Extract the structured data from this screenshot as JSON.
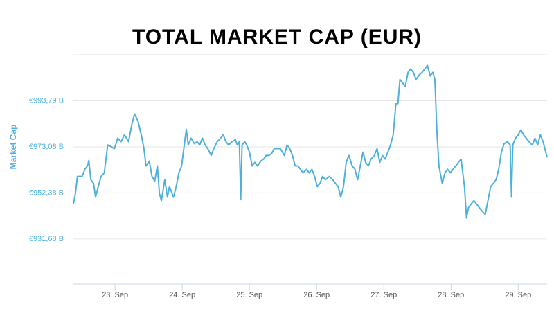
{
  "chart_data": {
    "type": "line",
    "title": "TOTAL MARKET CAP (EUR)",
    "y_label": "Market Cap",
    "x": [
      22.38,
      22.41,
      22.44,
      22.51,
      22.55,
      22.59,
      22.61,
      22.64,
      22.68,
      22.71,
      22.75,
      22.79,
      22.84,
      22.89,
      22.94,
      22.99,
      23.04,
      23.09,
      23.14,
      23.2,
      23.25,
      23.29,
      23.34,
      23.39,
      23.43,
      23.46,
      23.51,
      23.55,
      23.59,
      23.63,
      23.66,
      23.69,
      23.74,
      23.78,
      23.81,
      23.87,
      23.91,
      23.95,
      23.99,
      24.03,
      24.06,
      24.09,
      24.13,
      24.18,
      24.22,
      24.26,
      24.3,
      24.34,
      24.38,
      24.43,
      24.47,
      24.52,
      24.57,
      24.61,
      24.65,
      24.69,
      24.74,
      24.79,
      24.82,
      24.85,
      24.87,
      24.89,
      24.93,
      24.96,
      25.0,
      25.04,
      25.08,
      25.12,
      25.17,
      25.21,
      25.25,
      25.29,
      25.33,
      25.37,
      25.41,
      25.46,
      25.52,
      25.56,
      25.6,
      25.64,
      25.68,
      25.72,
      25.76,
      25.8,
      25.85,
      25.89,
      25.93,
      25.97,
      26.01,
      26.05,
      26.09,
      26.13,
      26.19,
      26.24,
      26.28,
      26.32,
      26.36,
      26.4,
      26.44,
      26.48,
      26.53,
      26.57,
      26.61,
      26.65,
      26.69,
      26.73,
      26.77,
      26.81,
      26.86,
      26.9,
      26.94,
      26.98,
      27.02,
      27.06,
      27.1,
      27.14,
      27.18,
      27.21,
      27.24,
      27.28,
      27.32,
      27.36,
      27.4,
      27.44,
      27.48,
      27.53,
      27.57,
      27.61,
      27.65,
      27.69,
      27.73,
      27.76,
      27.79,
      27.82,
      27.87,
      27.91,
      27.95,
      27.99,
      28.03,
      28.07,
      28.11,
      28.15,
      28.2,
      28.23,
      28.26,
      28.3,
      28.34,
      28.38,
      28.42,
      28.46,
      28.51,
      28.55,
      28.59,
      28.63,
      28.67,
      28.71,
      28.75,
      28.79,
      28.84,
      28.88,
      28.9,
      28.92,
      28.96,
      29.0,
      29.04,
      29.08,
      29.12,
      29.16,
      29.21,
      29.25,
      29.29,
      29.33,
      29.37,
      29.41,
      29.43
    ],
    "series": [
      {
        "name": "Market Cap",
        "color": "#4fb0dd",
        "values": [
          947.4,
          952.1,
          959.8,
          959.8,
          963.0,
          964.5,
          967.0,
          958.3,
          956.7,
          950.5,
          955.2,
          959.8,
          961.4,
          973.9,
          973.2,
          972.3,
          977.0,
          975.4,
          978.5,
          975.4,
          983.2,
          987.9,
          984.8,
          978.5,
          972.3,
          964.5,
          966.7,
          959.8,
          957.7,
          964.5,
          952.1,
          948.9,
          958.3,
          950.5,
          955.2,
          950.5,
          955.2,
          961.4,
          964.5,
          973.9,
          981.0,
          973.9,
          977.0,
          974.5,
          975.4,
          973.9,
          977.0,
          973.9,
          972.3,
          969.2,
          972.3,
          975.4,
          977.0,
          978.5,
          975.4,
          973.9,
          975.4,
          976.3,
          973.9,
          975.4,
          949.6,
          973.9,
          975.4,
          973.9,
          970.7,
          964.5,
          966.1,
          964.5,
          966.7,
          967.6,
          969.2,
          969.2,
          970.1,
          972.3,
          972.3,
          972.3,
          969.2,
          973.9,
          972.3,
          969.2,
          964.5,
          964.5,
          963.0,
          961.4,
          963.0,
          961.4,
          963.0,
          959.8,
          955.2,
          956.7,
          959.8,
          958.3,
          959.8,
          958.3,
          956.7,
          955.2,
          950.5,
          955.2,
          966.1,
          969.2,
          964.5,
          963.0,
          958.3,
          964.5,
          970.7,
          966.1,
          964.5,
          967.6,
          969.2,
          972.3,
          966.1,
          969.2,
          967.6,
          970.7,
          973.9,
          978.5,
          992.5,
          992.5,
          1003.4,
          1001.9,
          1000.3,
          1006.6,
          1008.1,
          1006.6,
          1003.4,
          1005.6,
          1006.6,
          1008.1,
          1009.7,
          1005.0,
          1006.6,
          1003.4,
          980.1,
          964.5,
          956.7,
          961.4,
          963.0,
          961.4,
          963.0,
          964.5,
          966.1,
          967.6,
          955.2,
          941.1,
          945.8,
          947.4,
          948.9,
          947.4,
          945.8,
          944.3,
          942.7,
          948.9,
          955.2,
          956.7,
          958.3,
          963.0,
          970.7,
          974.5,
          975.4,
          973.9,
          950.5,
          973.9,
          977.0,
          978.5,
          980.7,
          978.5,
          977.0,
          975.4,
          973.9,
          977.0,
          973.9,
          978.5,
          975.4,
          970.7,
          968.3
        ]
      }
    ],
    "xlim": [
      22.38,
      29.43
    ],
    "xticks": [
      {
        "value": 23,
        "label": "23. Sep"
      },
      {
        "value": 24,
        "label": "24. Sep"
      },
      {
        "value": 25,
        "label": "25. Sep"
      },
      {
        "value": 26,
        "label": "26. Sep"
      },
      {
        "value": 27,
        "label": "27. Sep"
      },
      {
        "value": 28,
        "label": "28. Sep"
      },
      {
        "value": 29,
        "label": "29. Sep"
      }
    ],
    "ylim": [
      911.4,
      1014.5
    ],
    "yticks": [
      {
        "value": 931.68,
        "label": "€931,68 B"
      },
      {
        "value": 952.38,
        "label": "€952,38 B"
      },
      {
        "value": 973.08,
        "label": "€973,08 B"
      },
      {
        "value": 993.79,
        "label": "€993,79 B"
      }
    ],
    "grid": true
  }
}
